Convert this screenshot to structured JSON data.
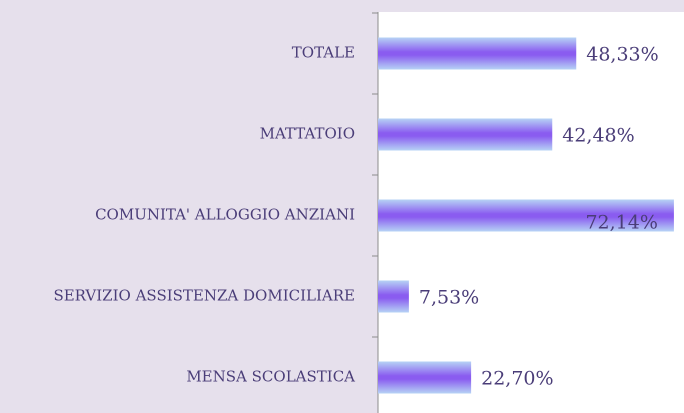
{
  "chart_data": {
    "type": "barh",
    "categories": [
      "TOTALE",
      "MATTATOIO",
      "COMUNITA' ALLOGGIO ANZIANI",
      "SERVIZIO ASSISTENZA DOMICILIARE",
      "MENSA SCOLASTICA"
    ],
    "values": [
      48.33,
      42.48,
      72.14,
      7.53,
      22.7
    ],
    "value_labels": [
      "48,33%",
      "42,48%",
      "72,14%",
      "7,53%",
      "22,70%"
    ],
    "xlim": [
      0,
      74.6
    ]
  }
}
